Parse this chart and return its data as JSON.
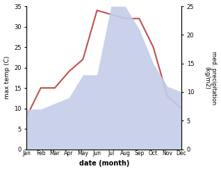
{
  "months": [
    "Jan",
    "Feb",
    "Mar",
    "Apr",
    "May",
    "Jun",
    "Jul",
    "Aug",
    "Sep",
    "Oct",
    "Nov",
    "Dec"
  ],
  "temperature": [
    8,
    15,
    15,
    19,
    22,
    34,
    33,
    32,
    32,
    25,
    13,
    10
  ],
  "precipitation": [
    7,
    7,
    8,
    9,
    13,
    13,
    25,
    25,
    21,
    15,
    11,
    10
  ],
  "temp_color": "#c0504d",
  "precip_fill_color": "#c5cce8",
  "xlabel": "date (month)",
  "ylabel_left": "max temp (C)",
  "ylabel_right": "med. precipitation\n(kg/m2)",
  "ylim_left": [
    0,
    35
  ],
  "ylim_right": [
    0,
    25
  ],
  "yticks_left": [
    0,
    5,
    10,
    15,
    20,
    25,
    30,
    35
  ],
  "yticks_right": [
    0,
    5,
    10,
    15,
    20,
    25
  ],
  "bg_color": "#ffffff",
  "temp_linewidth": 1.5
}
